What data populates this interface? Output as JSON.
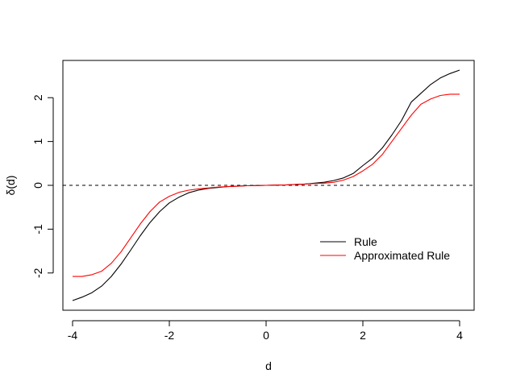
{
  "chart_data": {
    "type": "line",
    "title": "",
    "xlabel": "d",
    "ylabel": "δ(d)",
    "xlim": [
      -4.2,
      4.3
    ],
    "ylim": [
      -2.85,
      2.85
    ],
    "x_ticks": [
      -4,
      -2,
      0,
      2,
      4
    ],
    "x_tick_labels": [
      "-4",
      "-2",
      "0",
      "2",
      "4"
    ],
    "y_ticks": [
      -2,
      -1,
      0,
      1,
      2
    ],
    "y_tick_labels": [
      "-2",
      "-1",
      "0",
      "1",
      "2"
    ],
    "grid": false,
    "legend_position": "bottom-right",
    "reference_line": {
      "y": 0,
      "style": "dashed",
      "color": "#000000"
    },
    "series": [
      {
        "name": "Rule",
        "color": "#000000",
        "x": [
          -4.0,
          -3.8,
          -3.6,
          -3.4,
          -3.2,
          -3.0,
          -2.8,
          -2.6,
          -2.4,
          -2.2,
          -2.0,
          -1.8,
          -1.6,
          -1.4,
          -1.2,
          -1.0,
          -0.8,
          -0.6,
          -0.4,
          -0.2,
          0.0,
          0.2,
          0.4,
          0.6,
          0.8,
          1.0,
          1.2,
          1.4,
          1.6,
          1.8,
          2.0,
          2.2,
          2.4,
          2.6,
          2.8,
          3.0,
          3.2,
          3.4,
          3.6,
          3.8,
          4.0
        ],
        "y": [
          -2.63,
          -2.55,
          -2.45,
          -2.3,
          -2.08,
          -1.8,
          -1.48,
          -1.15,
          -0.85,
          -0.6,
          -0.4,
          -0.27,
          -0.17,
          -0.11,
          -0.07,
          -0.05,
          -0.03,
          -0.02,
          -0.01,
          -0.005,
          0.0,
          0.005,
          0.01,
          0.02,
          0.03,
          0.05,
          0.07,
          0.11,
          0.17,
          0.27,
          0.45,
          0.62,
          0.85,
          1.15,
          1.48,
          1.9,
          2.1,
          2.3,
          2.45,
          2.55,
          2.63
        ]
      },
      {
        "name": "Approximated Rule",
        "color": "#ff0000",
        "x": [
          -4.0,
          -3.8,
          -3.6,
          -3.4,
          -3.2,
          -3.0,
          -2.8,
          -2.6,
          -2.4,
          -2.2,
          -2.0,
          -1.8,
          -1.6,
          -1.4,
          -1.2,
          -1.0,
          -0.8,
          -0.6,
          -0.4,
          -0.2,
          0.0,
          0.2,
          0.4,
          0.6,
          0.8,
          1.0,
          1.2,
          1.4,
          1.6,
          1.8,
          2.0,
          2.2,
          2.4,
          2.6,
          2.8,
          3.0,
          3.2,
          3.4,
          3.6,
          3.8,
          4.0
        ],
        "y": [
          -2.08,
          -2.08,
          -2.04,
          -1.96,
          -1.78,
          -1.52,
          -1.2,
          -0.88,
          -0.6,
          -0.38,
          -0.25,
          -0.16,
          -0.11,
          -0.08,
          -0.06,
          -0.04,
          -0.03,
          -0.02,
          -0.01,
          -0.005,
          0.0,
          0.005,
          0.01,
          0.02,
          0.03,
          0.04,
          0.05,
          0.07,
          0.12,
          0.2,
          0.33,
          0.48,
          0.7,
          1.0,
          1.3,
          1.6,
          1.85,
          1.97,
          2.05,
          2.08,
          2.08
        ]
      }
    ]
  }
}
